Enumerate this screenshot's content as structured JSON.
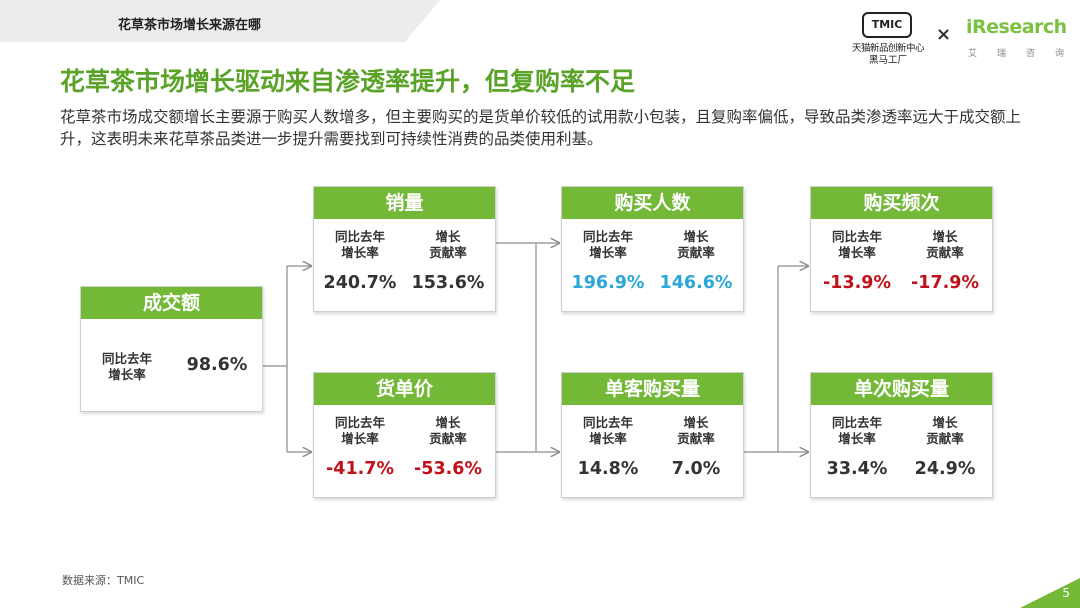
{
  "header": {
    "section": "花草茶市场增长来源在哪"
  },
  "logos": {
    "tmic_mark": "TMIC",
    "tmic_line1": "天猫新品创新中心",
    "tmic_line2": "黑马工厂",
    "times": "×",
    "iresearch": "iResearch",
    "iresearch_sub": [
      "艾",
      "瑞",
      "咨",
      "询"
    ]
  },
  "title": "花草茶市场增长驱动来自渗透率提升，但复购率不足",
  "description": "花草茶市场成交额增长主要源于购买人数增多，但主要购买的是货单价较低的试用款小包装，且复购率偏低，导致品类渗透率远大于成交额上升，这表明未来花草茶品类进一步提升需要找到可持续性消费的品类使用利基。",
  "labels": {
    "yoy": "同比去年\n增长率",
    "contrib": "增长\n贡献率"
  },
  "root": {
    "name": "成交额",
    "yoy_label": "同比去年\n增长率",
    "yoy": "98.6%"
  },
  "nodes": {
    "sales_volume": {
      "name": "销量",
      "yoy": "240.7%",
      "contrib": "153.6%"
    },
    "unit_price": {
      "name": "货单价",
      "yoy": "-41.7%",
      "contrib": "-53.6%"
    },
    "buyers": {
      "name": "购买人数",
      "yoy": "196.9%",
      "contrib": "146.6%"
    },
    "per_customer": {
      "name": "单客购买量",
      "yoy": "14.8%",
      "contrib": "7.0%"
    },
    "frequency": {
      "name": "购买频次",
      "yoy": "-13.9%",
      "contrib": "-17.9%"
    },
    "per_purchase": {
      "name": "单次购买量",
      "yoy": "33.4%",
      "contrib": "24.9%"
    }
  },
  "colors": {
    "accent": "#73b837",
    "negative": "#c0101a",
    "highlight": "#2aa7d8"
  },
  "footer": {
    "source": "数据来源：TMIC",
    "page": "5"
  }
}
